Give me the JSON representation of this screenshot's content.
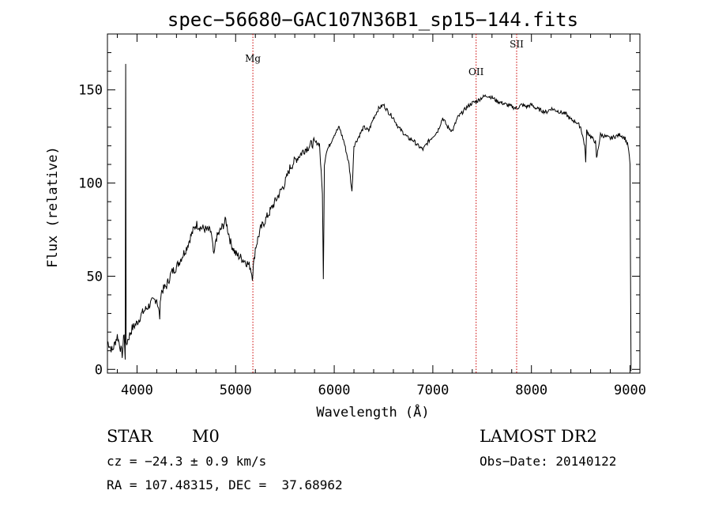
{
  "chart_data": {
    "type": "line",
    "title": "spec−56680−GAC107N36B1_sp15−144.fits",
    "xlabel": "Wavelength (Å)",
    "ylabel": "Flux (relative)",
    "xlim": [
      3700,
      9100
    ],
    "ylim": [
      -2,
      180
    ],
    "xticks": [
      4000,
      5000,
      6000,
      7000,
      8000,
      9000
    ],
    "yticks": [
      0,
      50,
      100,
      150
    ],
    "grid": false,
    "line_color": "#000000",
    "marker_color": "#cc0000",
    "series": [
      {
        "x": [
          3700,
          3750,
          3800,
          3850,
          3870,
          3880,
          3885,
          3890,
          3900,
          3950,
          4000,
          4050,
          4100,
          4150,
          4200,
          4230,
          4240,
          4250,
          4300,
          4350,
          4400,
          4450,
          4500,
          4550,
          4600,
          4650,
          4700,
          4750,
          4780,
          4800,
          4850,
          4900,
          4950,
          5000,
          5050,
          5100,
          5150,
          5170,
          5180,
          5200,
          5250,
          5300,
          5350,
          5400,
          5450,
          5500,
          5550,
          5600,
          5650,
          5700,
          5750,
          5800,
          5850,
          5880,
          5890,
          5900,
          5920,
          5950,
          6000,
          6050,
          6100,
          6150,
          6180,
          6200,
          6250,
          6300,
          6350,
          6400,
          6450,
          6500,
          6550,
          6600,
          6650,
          6700,
          6750,
          6800,
          6850,
          6900,
          6950,
          7000,
          7050,
          7100,
          7150,
          7200,
          7250,
          7300,
          7350,
          7400,
          7450,
          7500,
          7550,
          7600,
          7650,
          7700,
          7750,
          7800,
          7850,
          7900,
          7950,
          8000,
          8050,
          8100,
          8150,
          8200,
          8250,
          8300,
          8350,
          8400,
          8450,
          8500,
          8540,
          8550,
          8560,
          8600,
          8650,
          8660,
          8700,
          8750,
          8800,
          8850,
          8900,
          8950,
          8980,
          9000,
          9010
        ],
        "y": [
          15,
          10,
          18,
          8,
          20,
          5,
          165,
          12,
          15,
          22,
          25,
          30,
          33,
          36,
          38,
          28,
          40,
          42,
          45,
          52,
          55,
          60,
          65,
          72,
          78,
          76,
          75,
          74,
          60,
          70,
          75,
          80,
          68,
          62,
          60,
          58,
          55,
          50,
          55,
          65,
          75,
          80,
          85,
          90,
          95,
          100,
          108,
          112,
          115,
          118,
          120,
          122,
          121,
          95,
          48,
          110,
          117,
          120,
          126,
          130,
          122,
          110,
          95,
          120,
          125,
          130,
          128,
          135,
          140,
          142,
          138,
          135,
          130,
          127,
          124,
          123,
          120,
          118,
          122,
          125,
          128,
          135,
          130,
          128,
          135,
          138,
          141,
          143,
          144,
          146,
          147,
          146,
          144,
          143,
          142,
          141,
          140,
          142,
          141,
          142,
          140,
          139,
          138,
          140,
          139,
          138,
          137,
          134,
          133,
          130,
          120,
          112,
          128,
          125,
          122,
          113,
          126,
          125,
          124,
          125,
          126,
          124,
          120,
          110,
          -1
        ]
      }
    ],
    "annotations": [
      {
        "label": "Mg",
        "x": 5175
      },
      {
        "label": "OII",
        "x": 7439
      },
      {
        "label": "SII",
        "x": 7850
      }
    ]
  },
  "info": {
    "class": "STAR",
    "subclass": "M0",
    "redshift": "cz = −24.3 ± 0.9 km/s",
    "position": "RA = 107.48315, DEC =  37.68962",
    "survey": "LAMOST DR2",
    "obs_date": "Obs−Date: 20140122"
  }
}
